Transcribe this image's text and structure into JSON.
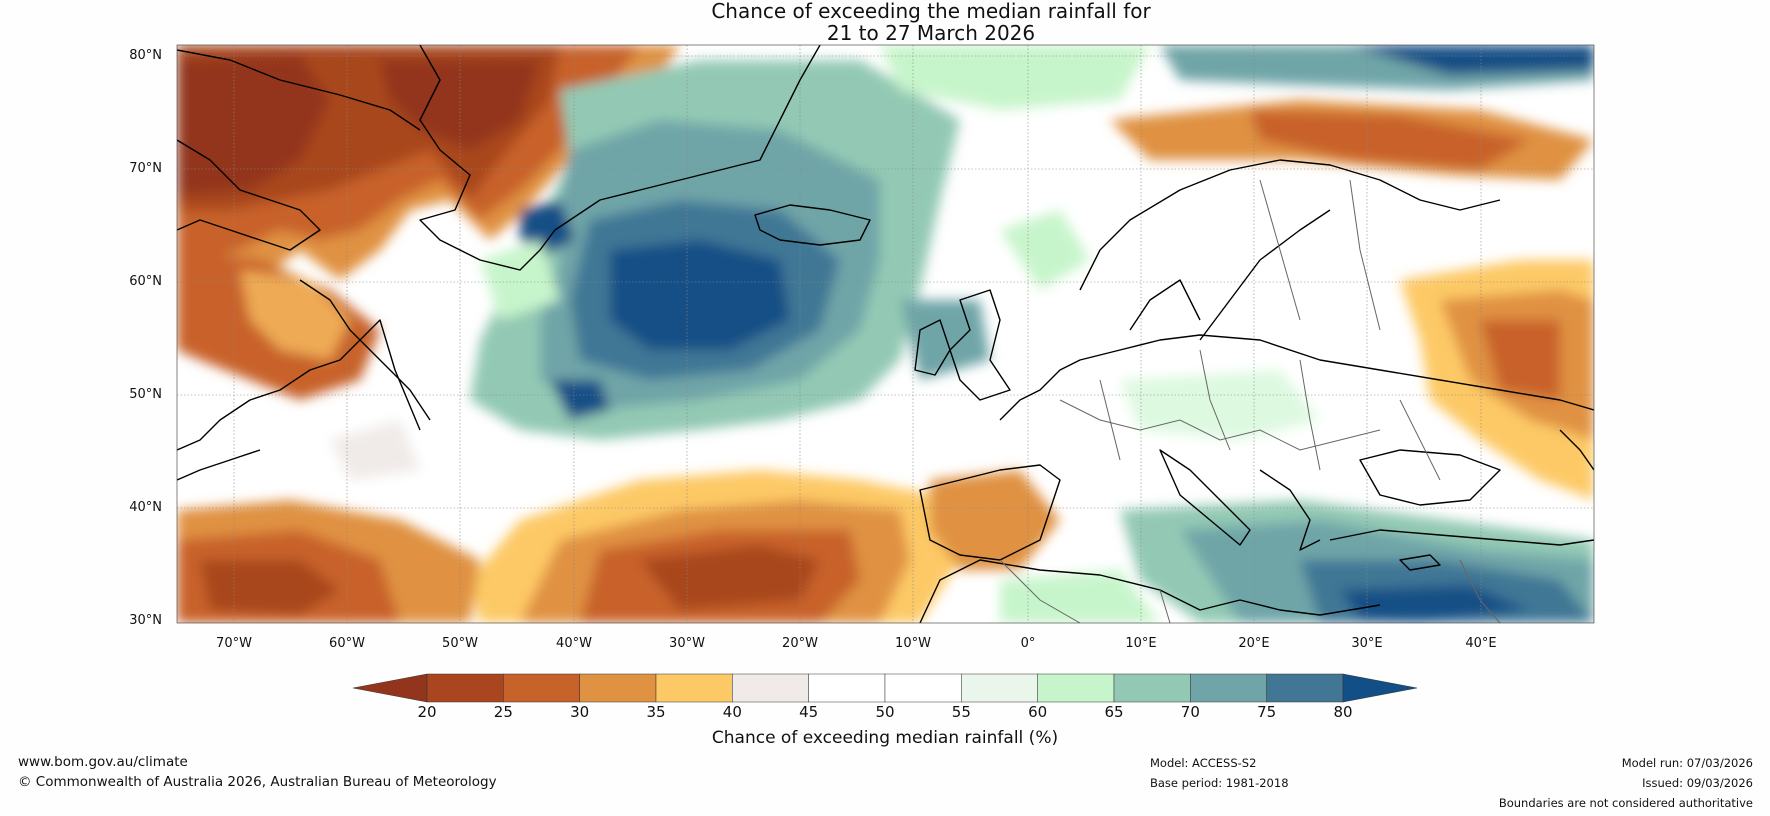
{
  "title": {
    "line1": "Chance of exceeding the median rainfall for",
    "line2": "21 to 27 March 2026"
  },
  "map": {
    "lat_labels": [
      "80°N",
      "70°N",
      "60°N",
      "50°N",
      "40°N",
      "30°N"
    ],
    "lon_labels": [
      "70°W",
      "60°W",
      "50°W",
      "40°W",
      "30°W",
      "20°W",
      "10°W",
      "0°",
      "10°E",
      "20°E",
      "30°E",
      "40°E"
    ],
    "lat_range": [
      30,
      81
    ],
    "lon_range": [
      -75,
      50
    ]
  },
  "colorbar": {
    "ticks": [
      "20",
      "25",
      "30",
      "35",
      "40",
      "45",
      "50",
      "55",
      "60",
      "65",
      "70",
      "75",
      "80"
    ],
    "label": "Chance of exceeding median rainfall (%)",
    "colors": [
      "#93341d",
      "#a9461f",
      "#c8622b",
      "#e09243",
      "#fdc966",
      "#f0ebe8",
      "#ffffff",
      "#ffffff",
      "#eaf5eb",
      "#c7f5cb",
      "#93c9b4",
      "#6fa5a8",
      "#417795",
      "#124f86"
    ]
  },
  "footer": {
    "website": "www.bom.gov.au/climate",
    "copyright": "© Commonwealth of Australia 2026, Australian Bureau of Meteorology",
    "model": "Model: ACCESS-S2",
    "base_period": "Base period: 1981-2018",
    "model_run": "Model run: 07/03/2026",
    "issued": "Issued: 09/03/2026",
    "disclaimer": "Boundaries are not considered authoritative"
  }
}
